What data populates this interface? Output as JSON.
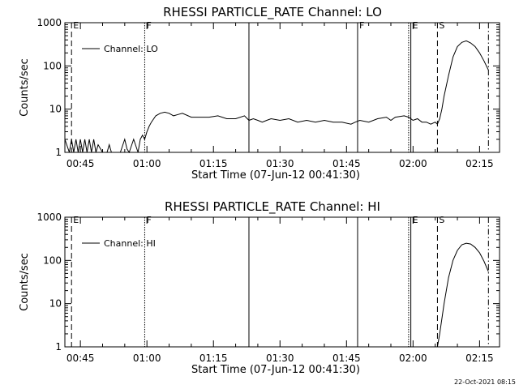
{
  "timestamp": "22-Oct-2021 08:15",
  "chart_data": [
    {
      "type": "line",
      "title": "RHESSI PARTICLE_RATE Channel: LO",
      "xlabel": "Start Time (07-Jun-12 00:41:30)",
      "ylabel": "Counts/sec",
      "yscale": "log",
      "ylim": [
        1,
        1000
      ],
      "xlim": [
        "00:41:30",
        "02:19:30"
      ],
      "x_ticks": [
        "00:45",
        "01:00",
        "01:15",
        "01:30",
        "01:45",
        "02:00",
        "02:15"
      ],
      "y_ticks": [
        "1",
        "10",
        "100",
        "1000"
      ],
      "legend": {
        "position": "top-left",
        "entries": [
          "Channel: LO"
        ]
      },
      "series": [
        {
          "name": "Channel: LO",
          "x": [
            "00:41:30",
            "00:42:30",
            "00:43:00",
            "00:43:30",
            "00:44:00",
            "00:44:30",
            "00:45:00",
            "00:45:30",
            "00:46:00",
            "00:46:30",
            "00:47:00",
            "00:47:30",
            "00:48:00",
            "00:48:30",
            "00:49:00",
            "00:50:00",
            "00:51:00",
            "00:51:30",
            "00:52:00",
            "00:53:00",
            "00:54:00",
            "00:55:00",
            "00:55:30",
            "00:56:00",
            "00:57:00",
            "00:58:00",
            "00:58:30",
            "00:59:00",
            "00:59:30",
            "01:00:00",
            "01:00:30",
            "01:01:00",
            "01:02:00",
            "01:03:00",
            "01:04:00",
            "01:05:00",
            "01:06:00",
            "01:07:00",
            "01:08:00",
            "01:10:00",
            "01:12:00",
            "01:14:00",
            "01:16:00",
            "01:18:00",
            "01:20:00",
            "01:22:00",
            "01:23:00",
            "01:24:00",
            "01:25:00",
            "01:26:00",
            "01:27:00",
            "01:28:00",
            "01:30:00",
            "01:32:00",
            "01:34:00",
            "01:36:00",
            "01:38:00",
            "01:40:00",
            "01:42:00",
            "01:44:00",
            "01:46:00",
            "01:47:00",
            "01:48:00",
            "01:50:00",
            "01:52:00",
            "01:54:00",
            "01:55:00",
            "01:56:00",
            "01:58:00",
            "01:59:00",
            "02:00:00",
            "02:01:00",
            "02:02:00",
            "02:03:00",
            "02:04:00",
            "02:05:00",
            "02:05:30",
            "02:06:00",
            "02:06:30",
            "02:07:00",
            "02:08:00",
            "02:09:00",
            "02:10:00",
            "02:11:00",
            "02:12:00",
            "02:13:00",
            "02:14:00",
            "02:15:00",
            "02:16:00",
            "02:17:00"
          ],
          "values": [
            2,
            1,
            2,
            1,
            2,
            1,
            2,
            1,
            2,
            1,
            2,
            1,
            2,
            1,
            1.5,
            1,
            1,
            1.5,
            1,
            1,
            1,
            2,
            1.2,
            1,
            2,
            1,
            2,
            2.5,
            2,
            3,
            4,
            5,
            7,
            8,
            8.5,
            8,
            7,
            7.5,
            8,
            6.5,
            6.5,
            6.5,
            7,
            6,
            6,
            7,
            5.5,
            6,
            5.5,
            5,
            5.5,
            6,
            5.5,
            6,
            5,
            5.5,
            5,
            5.5,
            5,
            5,
            4.5,
            5,
            5.5,
            5,
            6,
            6.5,
            5.5,
            6.5,
            7,
            6.5,
            5.5,
            6,
            5,
            5,
            4.5,
            5,
            4.5,
            6,
            10,
            20,
            60,
            160,
            280,
            350,
            380,
            340,
            280,
            200,
            130,
            80
          ]
        }
      ],
      "markers": [
        {
          "label": "E",
          "time": "00:43:00",
          "style": "dashed"
        },
        {
          "label": "F",
          "time": "00:59:30",
          "style": "dotted"
        },
        {
          "label": "",
          "time": "01:23:00",
          "style": "solid"
        },
        {
          "label": "F",
          "time": "01:47:30",
          "style": "solid"
        },
        {
          "label": "",
          "time": "01:59:00",
          "style": "dotted"
        },
        {
          "label": "E",
          "time": "01:59:30",
          "style": "solid"
        },
        {
          "label": "S",
          "time": "02:05:30",
          "style": "dashed"
        },
        {
          "label": "",
          "time": "02:17:00",
          "style": "dashdot"
        }
      ]
    },
    {
      "type": "line",
      "title": "RHESSI PARTICLE_RATE Channel: HI",
      "xlabel": "Start Time (07-Jun-12 00:41:30)",
      "ylabel": "Counts/sec",
      "yscale": "log",
      "ylim": [
        1,
        1000
      ],
      "xlim": [
        "00:41:30",
        "02:19:30"
      ],
      "x_ticks": [
        "00:45",
        "01:00",
        "01:15",
        "01:30",
        "01:45",
        "02:00",
        "02:15"
      ],
      "y_ticks": [
        "1",
        "10",
        "100",
        "1000"
      ],
      "legend": {
        "position": "top-left",
        "entries": [
          "Channel: HI"
        ]
      },
      "series": [
        {
          "name": "Channel: HI",
          "x": [
            "02:05:30",
            "02:06:00",
            "02:07:00",
            "02:08:00",
            "02:09:00",
            "02:10:00",
            "02:11:00",
            "02:12:00",
            "02:13:00",
            "02:14:00",
            "02:15:00",
            "02:16:00",
            "02:17:00"
          ],
          "values": [
            1,
            2,
            10,
            40,
            100,
            170,
            230,
            250,
            240,
            200,
            150,
            95,
            55
          ]
        }
      ],
      "markers": [
        {
          "label": "E",
          "time": "00:43:00",
          "style": "dashed"
        },
        {
          "label": "F",
          "time": "00:59:30",
          "style": "dotted"
        },
        {
          "label": "",
          "time": "01:23:00",
          "style": "solid"
        },
        {
          "label": "",
          "time": "01:47:30",
          "style": "solid"
        },
        {
          "label": "",
          "time": "01:59:00",
          "style": "dotted"
        },
        {
          "label": "E",
          "time": "01:59:30",
          "style": "solid"
        },
        {
          "label": "S",
          "time": "02:05:30",
          "style": "dashed"
        },
        {
          "label": "",
          "time": "02:17:00",
          "style": "dashdot"
        }
      ]
    }
  ]
}
